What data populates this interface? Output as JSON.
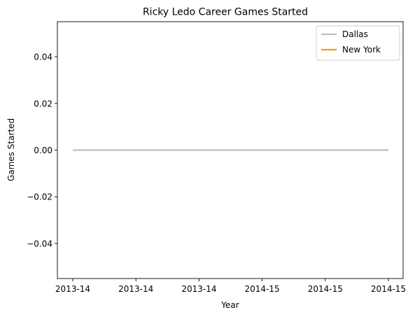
{
  "chart_data": {
    "type": "line",
    "title": "Ricky Ledo Career Games Started",
    "xlabel": "Year",
    "ylabel": "Games Started",
    "ylim": [
      -0.055,
      0.055
    ],
    "yticks": [
      -0.04,
      -0.02,
      0.0,
      0.02,
      0.04
    ],
    "ytick_labels": [
      "−0.04",
      "−0.02",
      "0.00",
      "0.02",
      "0.04"
    ],
    "xtick_labels": [
      "2013-14",
      "2013-14",
      "2013-14",
      "2014-15",
      "2014-15",
      "2014-15"
    ],
    "grid": false,
    "legend_position": "top-right",
    "series": [
      {
        "name": "Dallas",
        "color": "#bfbfbf",
        "x": [
          0,
          1,
          2,
          3,
          4,
          5
        ],
        "values": [
          0,
          0,
          0,
          0,
          0,
          0
        ]
      },
      {
        "name": "New York",
        "color": "#ff9900",
        "x": [],
        "values": []
      }
    ]
  }
}
